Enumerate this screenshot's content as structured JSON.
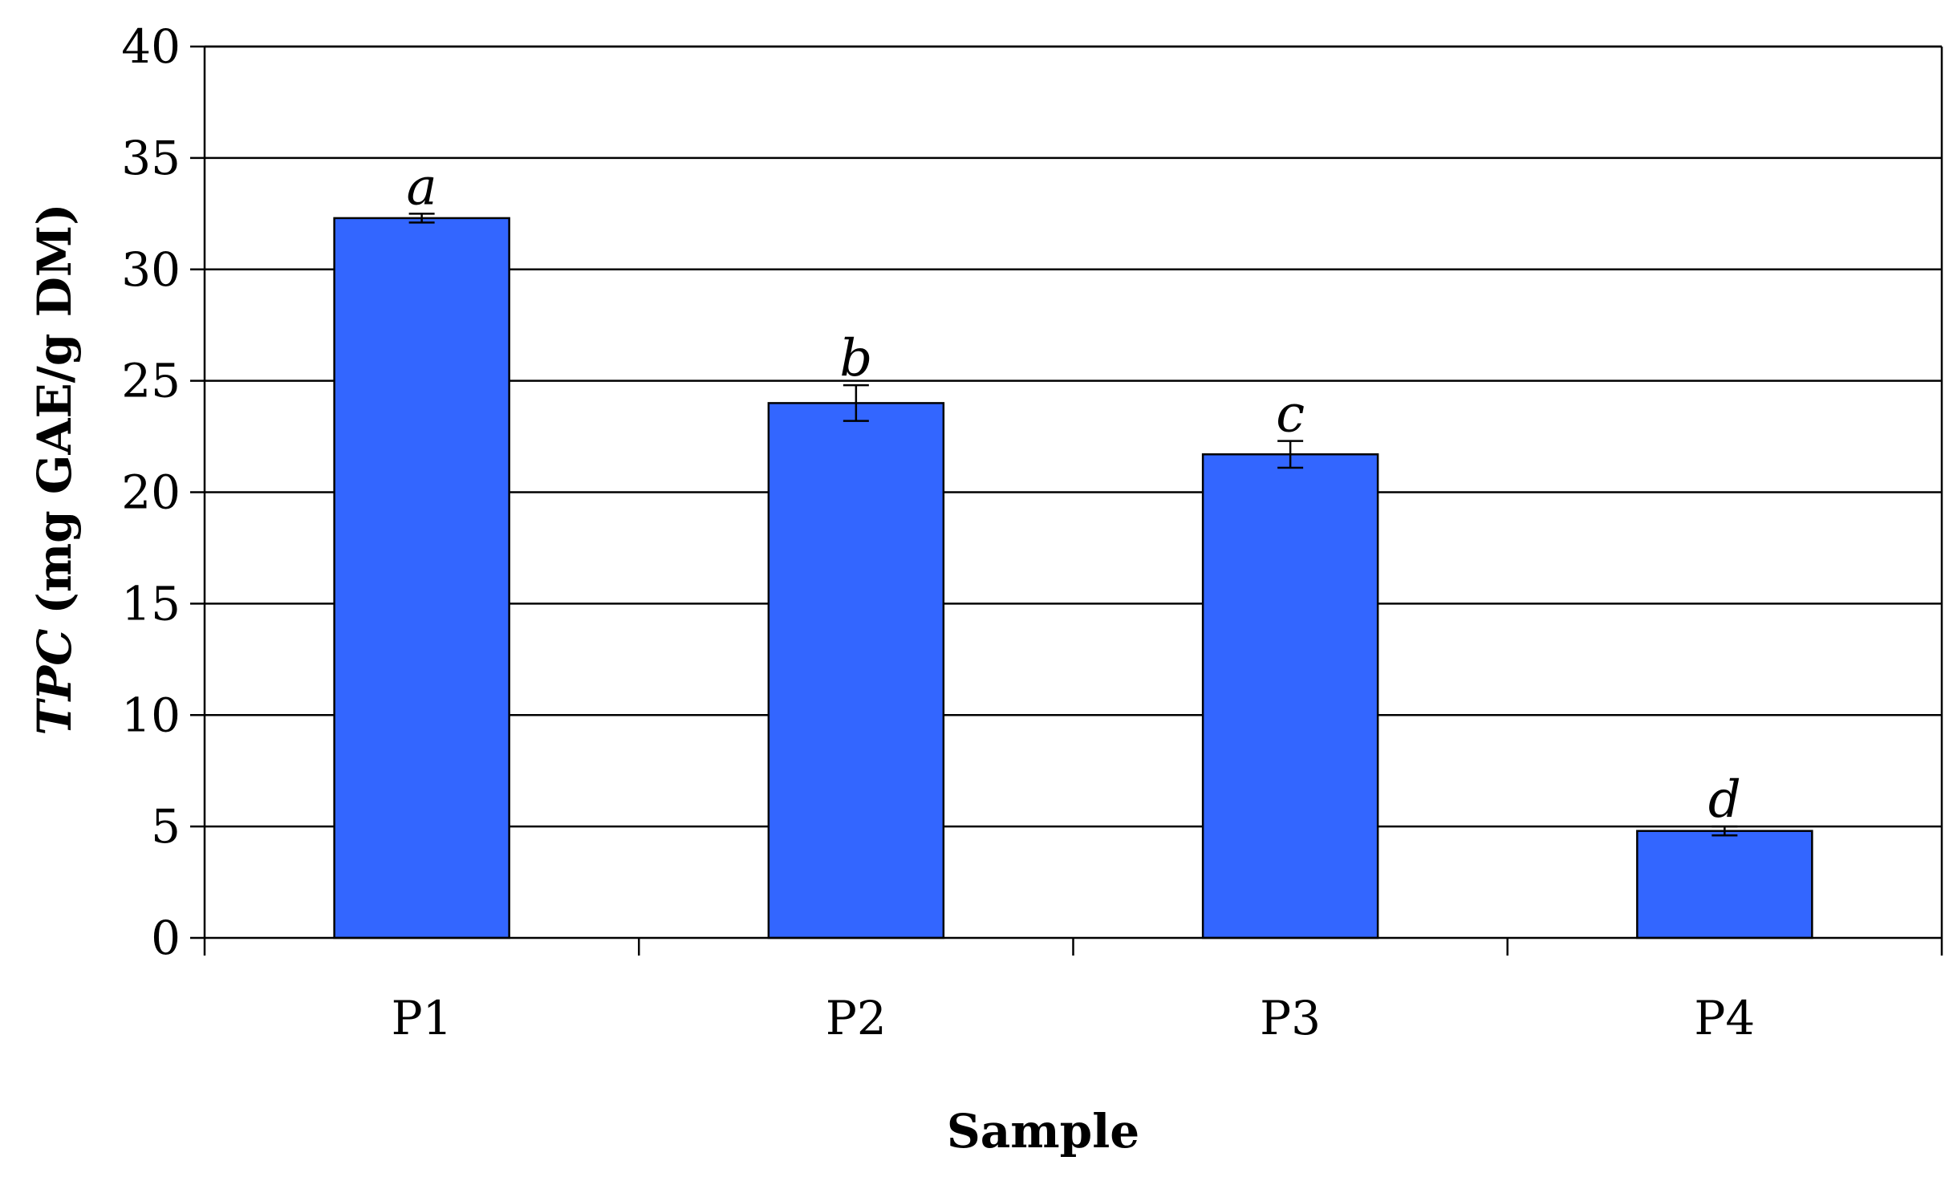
{
  "chart_data": {
    "type": "bar",
    "categories": [
      "P1",
      "P2",
      "P3",
      "P4"
    ],
    "series": [
      {
        "values": [
          32.3,
          24.0,
          21.7,
          4.8
        ],
        "errors": [
          0.2,
          0.8,
          0.6,
          0.2
        ],
        "significance": [
          "a",
          "b",
          "c",
          "d"
        ]
      }
    ],
    "xlabel": "Sample",
    "ylabel_italic": "TPC",
    "ylabel_rest": "(mg GAE/g DM)",
    "ylim": [
      0,
      40
    ],
    "yticks": [
      "0",
      "5",
      "10",
      "15",
      "20",
      "25",
      "30",
      "35",
      "40"
    ],
    "grid": "horizontal",
    "bar_color": "#3366FF"
  }
}
